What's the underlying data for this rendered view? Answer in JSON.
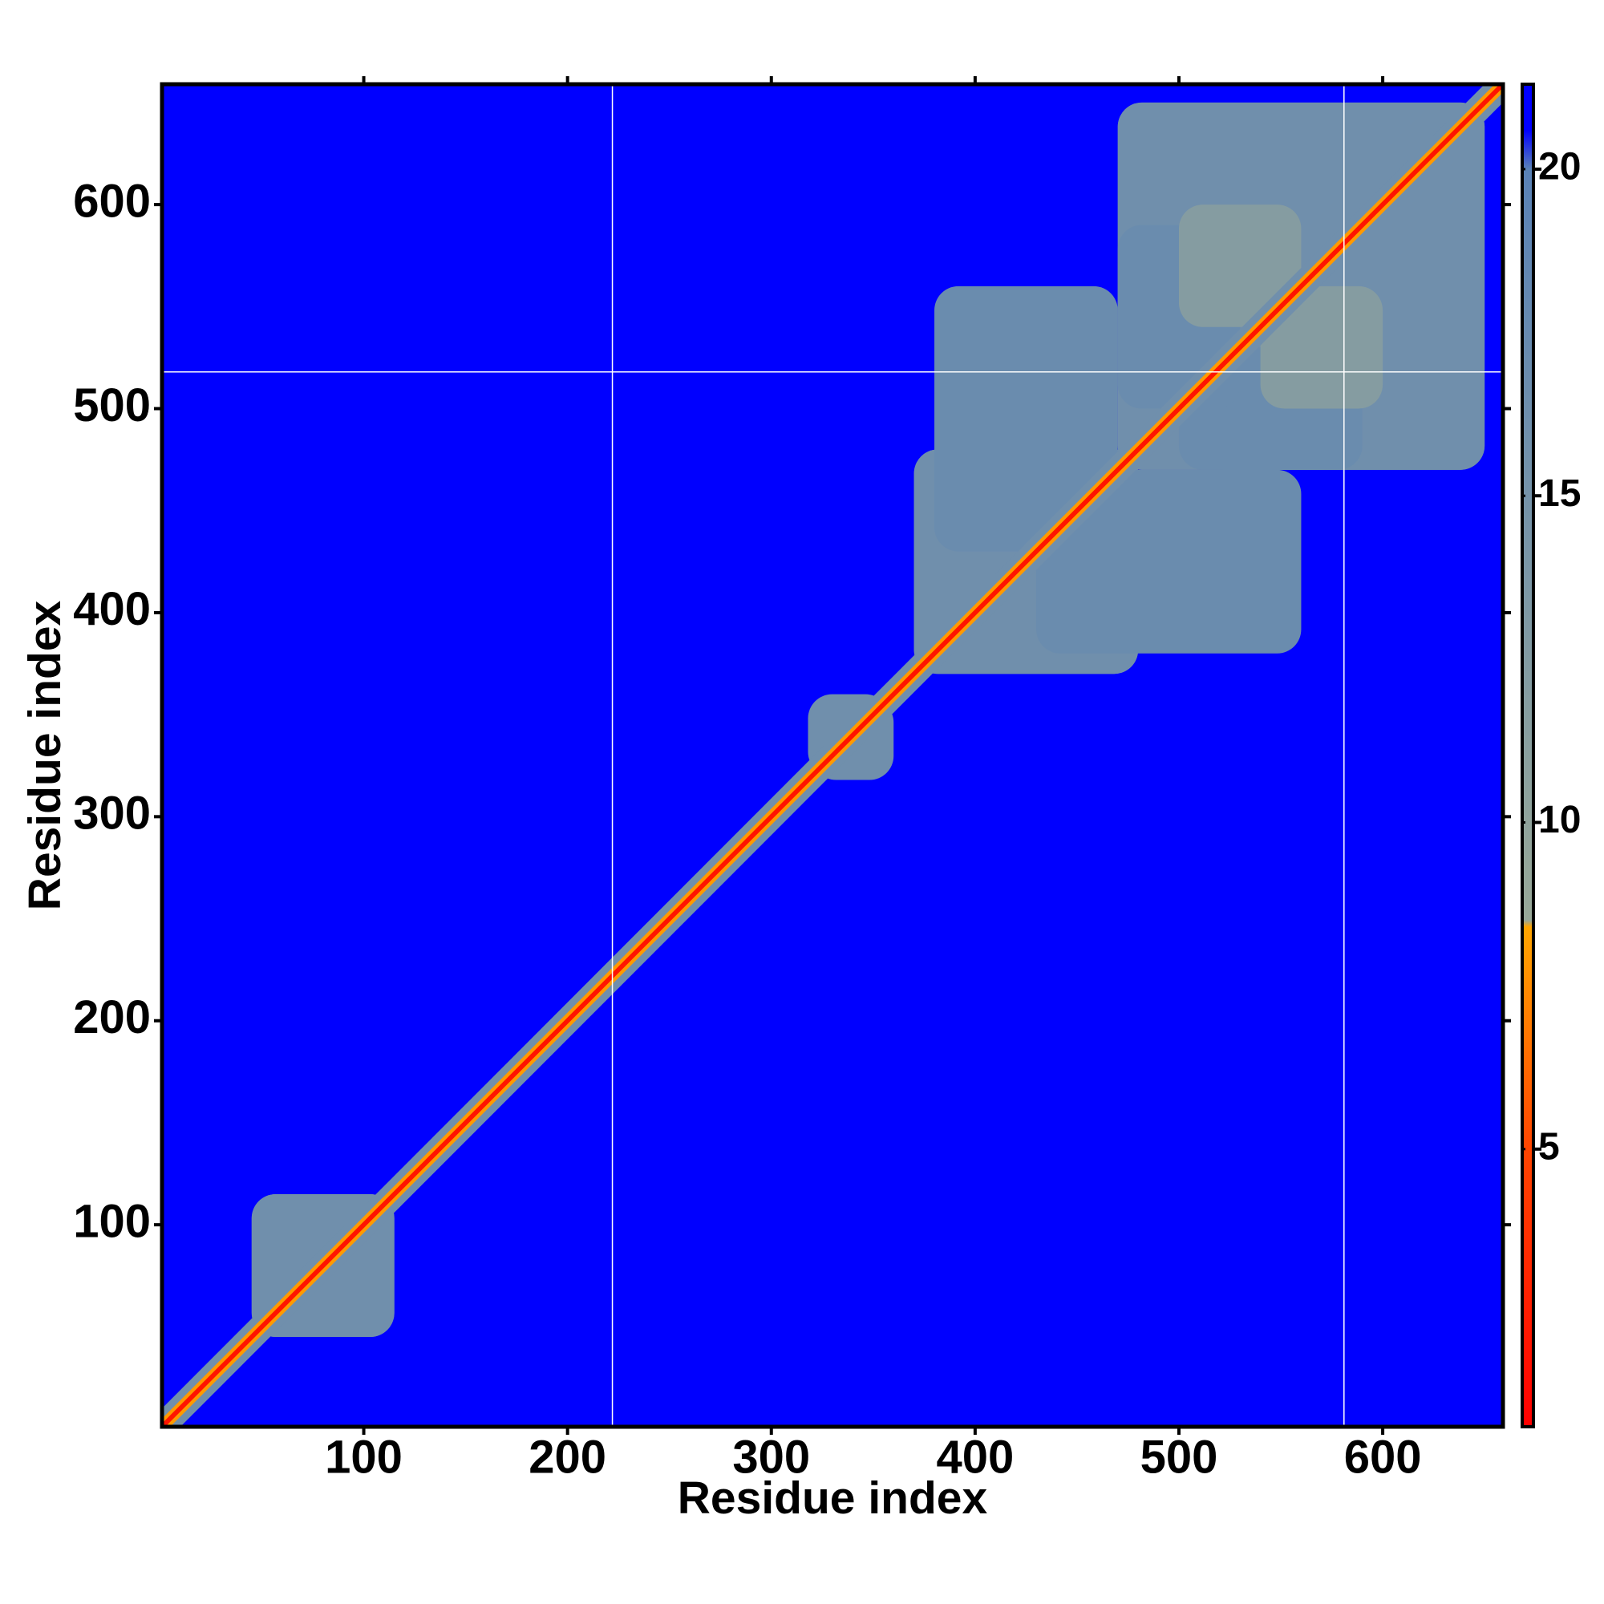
{
  "chart_data": {
    "type": "heatmap",
    "x_label": "Residue index",
    "y_label": "Residue index",
    "xlim": [
      1,
      659
    ],
    "ylim": [
      1,
      659
    ],
    "xticks": [
      100,
      200,
      300,
      400,
      500,
      600
    ],
    "yticks": [
      100,
      200,
      300,
      400,
      500,
      600
    ],
    "clim": [
      0.75,
      21.3
    ],
    "cticks": [
      5,
      10,
      15,
      20
    ],
    "colorscale": [
      {
        "value": 0.75,
        "color": "#ff0000"
      },
      {
        "value": 5,
        "color": "#ff4500"
      },
      {
        "value": 8.4,
        "color": "#ffa500"
      },
      {
        "value": 8.5,
        "color": "#98a898"
      },
      {
        "value": 20,
        "color": "#5a82b6"
      },
      {
        "value": 20.6,
        "color": "#0000ff"
      }
    ],
    "background_value": 21,
    "blocks": [
      {
        "x": [
          45,
          115
        ],
        "y": [
          45,
          115
        ],
        "value": 16
      },
      {
        "x": [
          320,
          360
        ],
        "y": [
          318,
          358
        ],
        "value": 16
      },
      {
        "x": [
          370,
          480
        ],
        "y": [
          370,
          480
        ],
        "value": 16
      },
      {
        "x": [
          430,
          560
        ],
        "y": [
          380,
          470
        ],
        "value": 17
      },
      {
        "x": [
          470,
          650
        ],
        "y": [
          470,
          650
        ],
        "value": 16
      },
      {
        "x": [
          500,
          590
        ],
        "y": [
          470,
          530
        ],
        "value": 17
      },
      {
        "x": [
          540,
          600
        ],
        "y": [
          500,
          560
        ],
        "value": 12
      }
    ],
    "diagonal_bands": [
      {
        "halfwidth": 9,
        "value": 16
      },
      {
        "halfwidth": 4,
        "value": 8
      },
      {
        "halfwidth": 1.6,
        "value": 2
      }
    ],
    "vlines": [
      222,
      581
    ],
    "hlines": [
      518
    ]
  }
}
